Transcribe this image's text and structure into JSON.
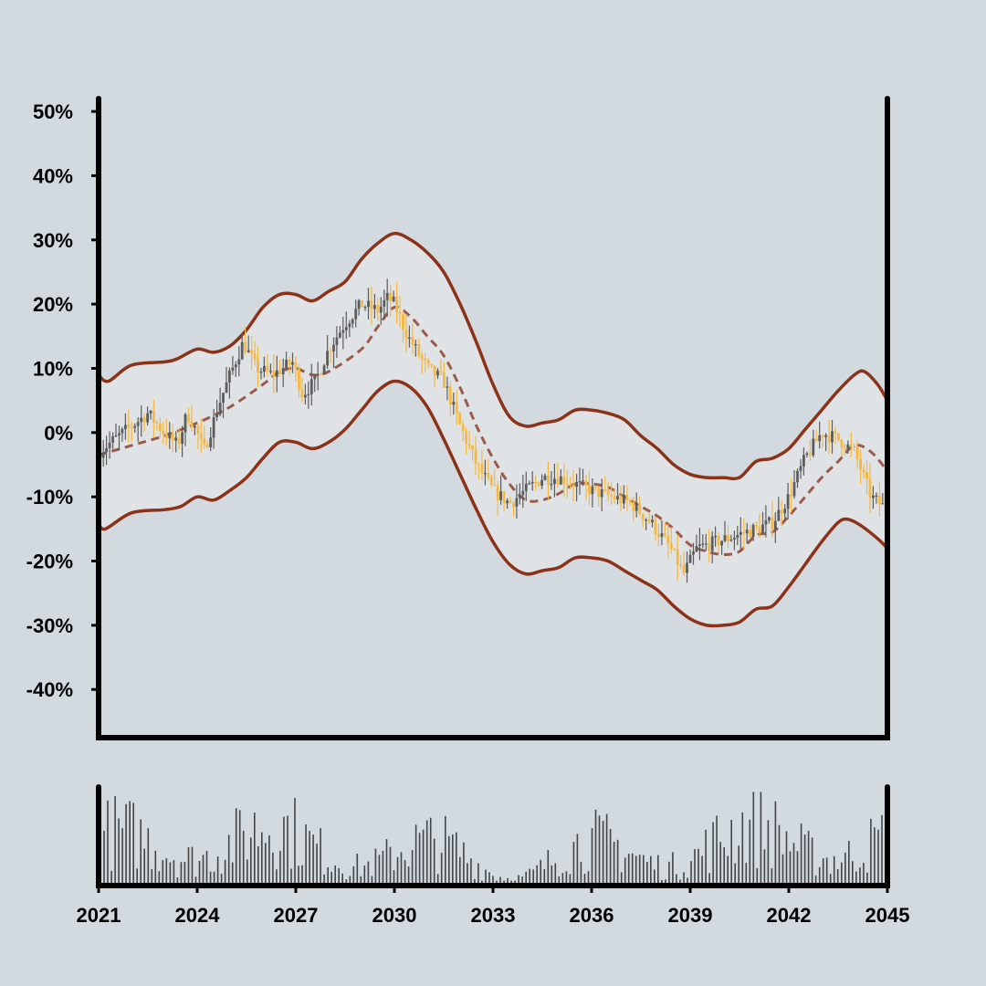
{
  "chart_data": {
    "type": "candlestick",
    "title": "",
    "xlabel": "",
    "ylabel": "",
    "y_tick_labels": [
      "50%",
      "40%",
      "30%",
      "20%",
      "10%",
      "0%",
      "-10%",
      "-20%",
      "-30%",
      "-40%"
    ],
    "y_tick_values": [
      50,
      40,
      30,
      20,
      10,
      0,
      -10,
      -20,
      -30,
      -40
    ],
    "ylim": [
      -47.5,
      52
    ],
    "x_tick_labels": [
      "2021",
      "2024",
      "2027",
      "2030",
      "2033",
      "2036",
      "2039",
      "2042",
      "2045"
    ],
    "x_tick_values": [
      2021,
      2024,
      2027,
      2030,
      2033,
      2036,
      2039,
      2042,
      2045
    ],
    "xlim": [
      2021,
      2045
    ],
    "grid": false,
    "legend": "none",
    "price_path": [
      [
        2021.0,
        -3
      ],
      [
        2021.5,
        -1
      ],
      [
        2022.0,
        1
      ],
      [
        2022.5,
        3
      ],
      [
        2023.0,
        0
      ],
      [
        2023.4,
        -2
      ],
      [
        2023.7,
        3
      ],
      [
        2024.0,
        0
      ],
      [
        2024.2,
        -3
      ],
      [
        2024.7,
        5
      ],
      [
        2025.0,
        9
      ],
      [
        2025.4,
        14
      ],
      [
        2025.8,
        10
      ],
      [
        2026.3,
        9
      ],
      [
        2026.9,
        11
      ],
      [
        2027.2,
        6
      ],
      [
        2027.6,
        8
      ],
      [
        2028.0,
        13
      ],
      [
        2028.5,
        17
      ],
      [
        2029.0,
        20
      ],
      [
        2029.5,
        19
      ],
      [
        2029.8,
        21
      ],
      [
        2030.0,
        20
      ],
      [
        2030.4,
        15
      ],
      [
        2031.0,
        10
      ],
      [
        2031.5,
        8
      ],
      [
        2032.0,
        1
      ],
      [
        2032.5,
        -5
      ],
      [
        2033.0,
        -9
      ],
      [
        2033.5,
        -11
      ],
      [
        2034.0,
        -9
      ],
      [
        2034.5,
        -7
      ],
      [
        2035.0,
        -7
      ],
      [
        2035.5,
        -8
      ],
      [
        2036.0,
        -9
      ],
      [
        2036.6,
        -10
      ],
      [
        2037.2,
        -11
      ],
      [
        2037.8,
        -14
      ],
      [
        2038.4,
        -18
      ],
      [
        2038.8,
        -22
      ],
      [
        2039.2,
        -18
      ],
      [
        2039.8,
        -17
      ],
      [
        2040.4,
        -16
      ],
      [
        2041.0,
        -15
      ],
      [
        2041.5,
        -14
      ],
      [
        2042.0,
        -10
      ],
      [
        2042.5,
        -4
      ],
      [
        2043.0,
        0
      ],
      [
        2043.5,
        -1
      ],
      [
        2044.0,
        -3
      ],
      [
        2044.5,
        -10
      ],
      [
        2045.0,
        -12
      ]
    ],
    "ma_path": [
      [
        2021.0,
        -3.5
      ],
      [
        2022.0,
        -2
      ],
      [
        2023.0,
        -0.5
      ],
      [
        2024.0,
        1.5
      ],
      [
        2025.0,
        4
      ],
      [
        2026.0,
        7.5
      ],
      [
        2026.5,
        9.5
      ],
      [
        2027.0,
        10
      ],
      [
        2027.5,
        9
      ],
      [
        2028.0,
        9.5
      ],
      [
        2029.0,
        13
      ],
      [
        2029.5,
        16.5
      ],
      [
        2030.0,
        19.5
      ],
      [
        2030.5,
        18
      ],
      [
        2031.0,
        15
      ],
      [
        2031.5,
        12
      ],
      [
        2032.0,
        7
      ],
      [
        2032.5,
        1
      ],
      [
        2033.0,
        -4
      ],
      [
        2033.5,
        -8
      ],
      [
        2034.0,
        -10.5
      ],
      [
        2034.5,
        -10.5
      ],
      [
        2035.0,
        -9.5
      ],
      [
        2035.5,
        -8
      ],
      [
        2036.0,
        -8
      ],
      [
        2036.5,
        -8.5
      ],
      [
        2037.0,
        -10
      ],
      [
        2037.5,
        -11.5
      ],
      [
        2038.0,
        -13
      ],
      [
        2038.5,
        -15
      ],
      [
        2039.0,
        -17.5
      ],
      [
        2039.5,
        -18.5
      ],
      [
        2040.0,
        -19
      ],
      [
        2040.5,
        -18.5
      ],
      [
        2041.0,
        -16
      ],
      [
        2041.5,
        -15.5
      ],
      [
        2042.0,
        -13
      ],
      [
        2042.5,
        -10
      ],
      [
        2043.0,
        -7
      ],
      [
        2043.5,
        -4.5
      ],
      [
        2044.0,
        -2
      ],
      [
        2044.5,
        -3
      ],
      [
        2045.0,
        -6
      ]
    ],
    "band_upper": [
      [
        2021.0,
        9
      ],
      [
        2021.3,
        8
      ],
      [
        2022.0,
        10.5
      ],
      [
        2023.0,
        11
      ],
      [
        2023.4,
        11.5
      ],
      [
        2024.0,
        13
      ],
      [
        2024.5,
        12.5
      ],
      [
        2025.0,
        13.5
      ],
      [
        2025.5,
        16
      ],
      [
        2026.0,
        19.5
      ],
      [
        2026.5,
        21.5
      ],
      [
        2027.0,
        21.5
      ],
      [
        2027.5,
        20.5
      ],
      [
        2028.0,
        22
      ],
      [
        2028.5,
        23.5
      ],
      [
        2029.0,
        27
      ],
      [
        2029.5,
        29.5
      ],
      [
        2030.0,
        31
      ],
      [
        2030.5,
        30
      ],
      [
        2031.0,
        28
      ],
      [
        2031.5,
        25
      ],
      [
        2032.0,
        20
      ],
      [
        2032.5,
        14
      ],
      [
        2033.0,
        7.5
      ],
      [
        2033.5,
        2.5
      ],
      [
        2034.0,
        1
      ],
      [
        2034.5,
        1.5
      ],
      [
        2035.0,
        2
      ],
      [
        2035.5,
        3.5
      ],
      [
        2036.0,
        3.5
      ],
      [
        2036.5,
        3
      ],
      [
        2037.0,
        2
      ],
      [
        2037.5,
        -0.5
      ],
      [
        2038.0,
        -2.5
      ],
      [
        2038.5,
        -5
      ],
      [
        2039.0,
        -6.5
      ],
      [
        2039.5,
        -7
      ],
      [
        2040.0,
        -7
      ],
      [
        2040.5,
        -7
      ],
      [
        2041.0,
        -4.5
      ],
      [
        2041.5,
        -4
      ],
      [
        2042.0,
        -2.5
      ],
      [
        2042.5,
        0.5
      ],
      [
        2043.0,
        3.5
      ],
      [
        2043.5,
        6.5
      ],
      [
        2044.0,
        9
      ],
      [
        2044.3,
        9.5
      ],
      [
        2044.7,
        7.5
      ],
      [
        2045.0,
        5
      ]
    ],
    "band_lower": [
      [
        2021.0,
        -14
      ],
      [
        2021.2,
        -15
      ],
      [
        2022.0,
        -12.5
      ],
      [
        2023.0,
        -12
      ],
      [
        2023.5,
        -11.5
      ],
      [
        2024.0,
        -10
      ],
      [
        2024.5,
        -10.5
      ],
      [
        2025.0,
        -9
      ],
      [
        2025.5,
        -7
      ],
      [
        2026.0,
        -4
      ],
      [
        2026.5,
        -1.5
      ],
      [
        2027.0,
        -1.5
      ],
      [
        2027.5,
        -2.5
      ],
      [
        2028.0,
        -1.5
      ],
      [
        2028.5,
        0.5
      ],
      [
        2029.0,
        3.5
      ],
      [
        2029.5,
        6.5
      ],
      [
        2030.0,
        8
      ],
      [
        2030.5,
        7
      ],
      [
        2031.0,
        4
      ],
      [
        2031.5,
        -1
      ],
      [
        2032.0,
        -6.5
      ],
      [
        2032.5,
        -12
      ],
      [
        2033.0,
        -17
      ],
      [
        2033.5,
        -20.5
      ],
      [
        2034.0,
        -22
      ],
      [
        2034.5,
        -21.5
      ],
      [
        2035.0,
        -21
      ],
      [
        2035.5,
        -19.5
      ],
      [
        2036.0,
        -19.5
      ],
      [
        2036.5,
        -20
      ],
      [
        2037.0,
        -21.5
      ],
      [
        2037.5,
        -23
      ],
      [
        2038.0,
        -24.5
      ],
      [
        2038.5,
        -27
      ],
      [
        2039.0,
        -29
      ],
      [
        2039.5,
        -30
      ],
      [
        2040.0,
        -30
      ],
      [
        2040.5,
        -29.5
      ],
      [
        2041.0,
        -27.5
      ],
      [
        2041.5,
        -27
      ],
      [
        2042.0,
        -24
      ],
      [
        2042.5,
        -20.5
      ],
      [
        2043.0,
        -17
      ],
      [
        2043.5,
        -14
      ],
      [
        2043.8,
        -13.5
      ],
      [
        2044.2,
        -14.5
      ],
      [
        2044.7,
        -16.5
      ],
      [
        2045.0,
        -18
      ]
    ],
    "volume_range": [
      0,
      100
    ],
    "colors": {
      "background": "#d2dae0",
      "plot_background": "#d2dae0",
      "band_fill": "#dfe3e6",
      "band_line": "#8b3218",
      "ma_line": "#9c5a4a",
      "candle_up": "#5c5c5c",
      "candle_down": "#f5b840",
      "volume_bar": "#444444",
      "axis": "#000000"
    }
  }
}
